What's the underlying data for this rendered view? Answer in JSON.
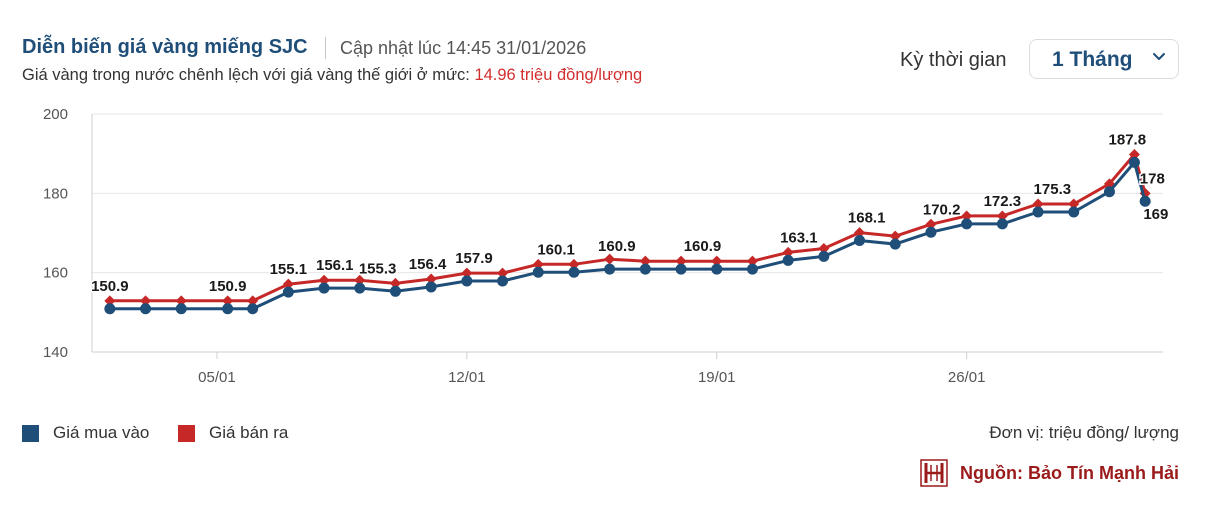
{
  "header": {
    "title": "Diễn biến giá vàng miếng SJC",
    "updated": "Cập nhật lúc 14:45 31/01/2026",
    "diff_prefix": "Giá vàng trong nước chênh lệch với giá vàng thế giới ở mức:",
    "diff_value": "14.96 triệu đồng/lượng"
  },
  "controls": {
    "period_label": "Kỳ thời gian",
    "period_value": "1 Tháng",
    "dropdown_icon": "chevron-down-icon"
  },
  "colors": {
    "buy": "#1f4e79",
    "sell": "#c62828",
    "accent": "#d32f2f",
    "grid": "#e6e6e6"
  },
  "footer": {
    "unit": "Đơn vị: triệu đồng/ lượng",
    "source": "Nguồn: Bảo Tín Mạnh Hải",
    "source_icon": "brand-logo-icon"
  },
  "chart_data": {
    "type": "line",
    "title": "",
    "xlabel": "",
    "ylabel": "",
    "ylim": [
      140,
      200
    ],
    "yticks": [
      140,
      160,
      180,
      200
    ],
    "xlim": [
      1.5,
      31.5
    ],
    "xticks": [
      {
        "x": 5,
        "label": "05/01"
      },
      {
        "x": 12,
        "label": "12/01"
      },
      {
        "x": 19,
        "label": "19/01"
      },
      {
        "x": 26,
        "label": "26/01"
      }
    ],
    "grid": "horizontal",
    "legend_position": "bottom-left",
    "series": [
      {
        "name": "Giá mua vào",
        "color": "#1f4e79",
        "marker": "circle",
        "x": [
          2,
          3,
          4,
          5.3,
          6,
          7,
          8,
          9,
          10,
          11,
          12,
          13,
          14,
          15,
          16,
          17,
          18,
          19,
          20,
          21,
          22,
          23,
          24,
          25,
          26,
          27,
          28,
          29,
          30,
          30.7,
          31
        ],
        "values": [
          150.9,
          150.9,
          150.9,
          150.9,
          150.9,
          155.1,
          156.1,
          156.1,
          155.3,
          156.4,
          157.9,
          157.9,
          160.1,
          160.1,
          160.9,
          160.9,
          160.9,
          160.9,
          160.9,
          163.1,
          164.1,
          168.1,
          167.2,
          170.2,
          172.3,
          172.3,
          175.3,
          175.3,
          180.4,
          187.8,
          178
        ]
      },
      {
        "name": "Giá bán ra",
        "color": "#c62828",
        "marker": "diamond",
        "x": [
          2,
          3,
          4,
          5.3,
          6,
          7,
          8,
          9,
          10,
          11,
          12,
          13,
          14,
          15,
          16,
          17,
          18,
          19,
          20,
          21,
          22,
          23,
          24,
          25,
          26,
          27,
          28,
          29,
          30,
          30.7,
          31
        ],
        "values": [
          152.9,
          152.9,
          152.9,
          152.9,
          152.9,
          157.1,
          158.1,
          158.1,
          157.3,
          158.4,
          159.9,
          159.9,
          162.1,
          162.1,
          163.4,
          162.9,
          162.9,
          162.9,
          162.9,
          165.1,
          166.1,
          170.1,
          169.2,
          172.2,
          174.3,
          174.3,
          177.3,
          177.3,
          182.4,
          189.8,
          180
        ]
      }
    ],
    "data_labels": [
      {
        "x": 2,
        "label": "150.9"
      },
      {
        "x": 5.3,
        "label": "150.9"
      },
      {
        "x": 7,
        "label": "155.1"
      },
      {
        "x": 8.3,
        "label": "156.1"
      },
      {
        "x": 9.5,
        "label": "155.3"
      },
      {
        "x": 10.9,
        "label": "156.4"
      },
      {
        "x": 12.2,
        "label": "157.9"
      },
      {
        "x": 14.5,
        "label": "160.1"
      },
      {
        "x": 16.2,
        "label": "160.9"
      },
      {
        "x": 18.6,
        "label": "160.9"
      },
      {
        "x": 21.3,
        "label": "163.1"
      },
      {
        "x": 23.2,
        "label": "168.1"
      },
      {
        "x": 25.3,
        "label": "170.2"
      },
      {
        "x": 27,
        "label": "172.3"
      },
      {
        "x": 28.4,
        "label": "175.3"
      },
      {
        "x": 30.5,
        "label": "187.8"
      },
      {
        "x": 31.2,
        "label": "178"
      },
      {
        "x": 31.3,
        "label": "169"
      }
    ]
  }
}
